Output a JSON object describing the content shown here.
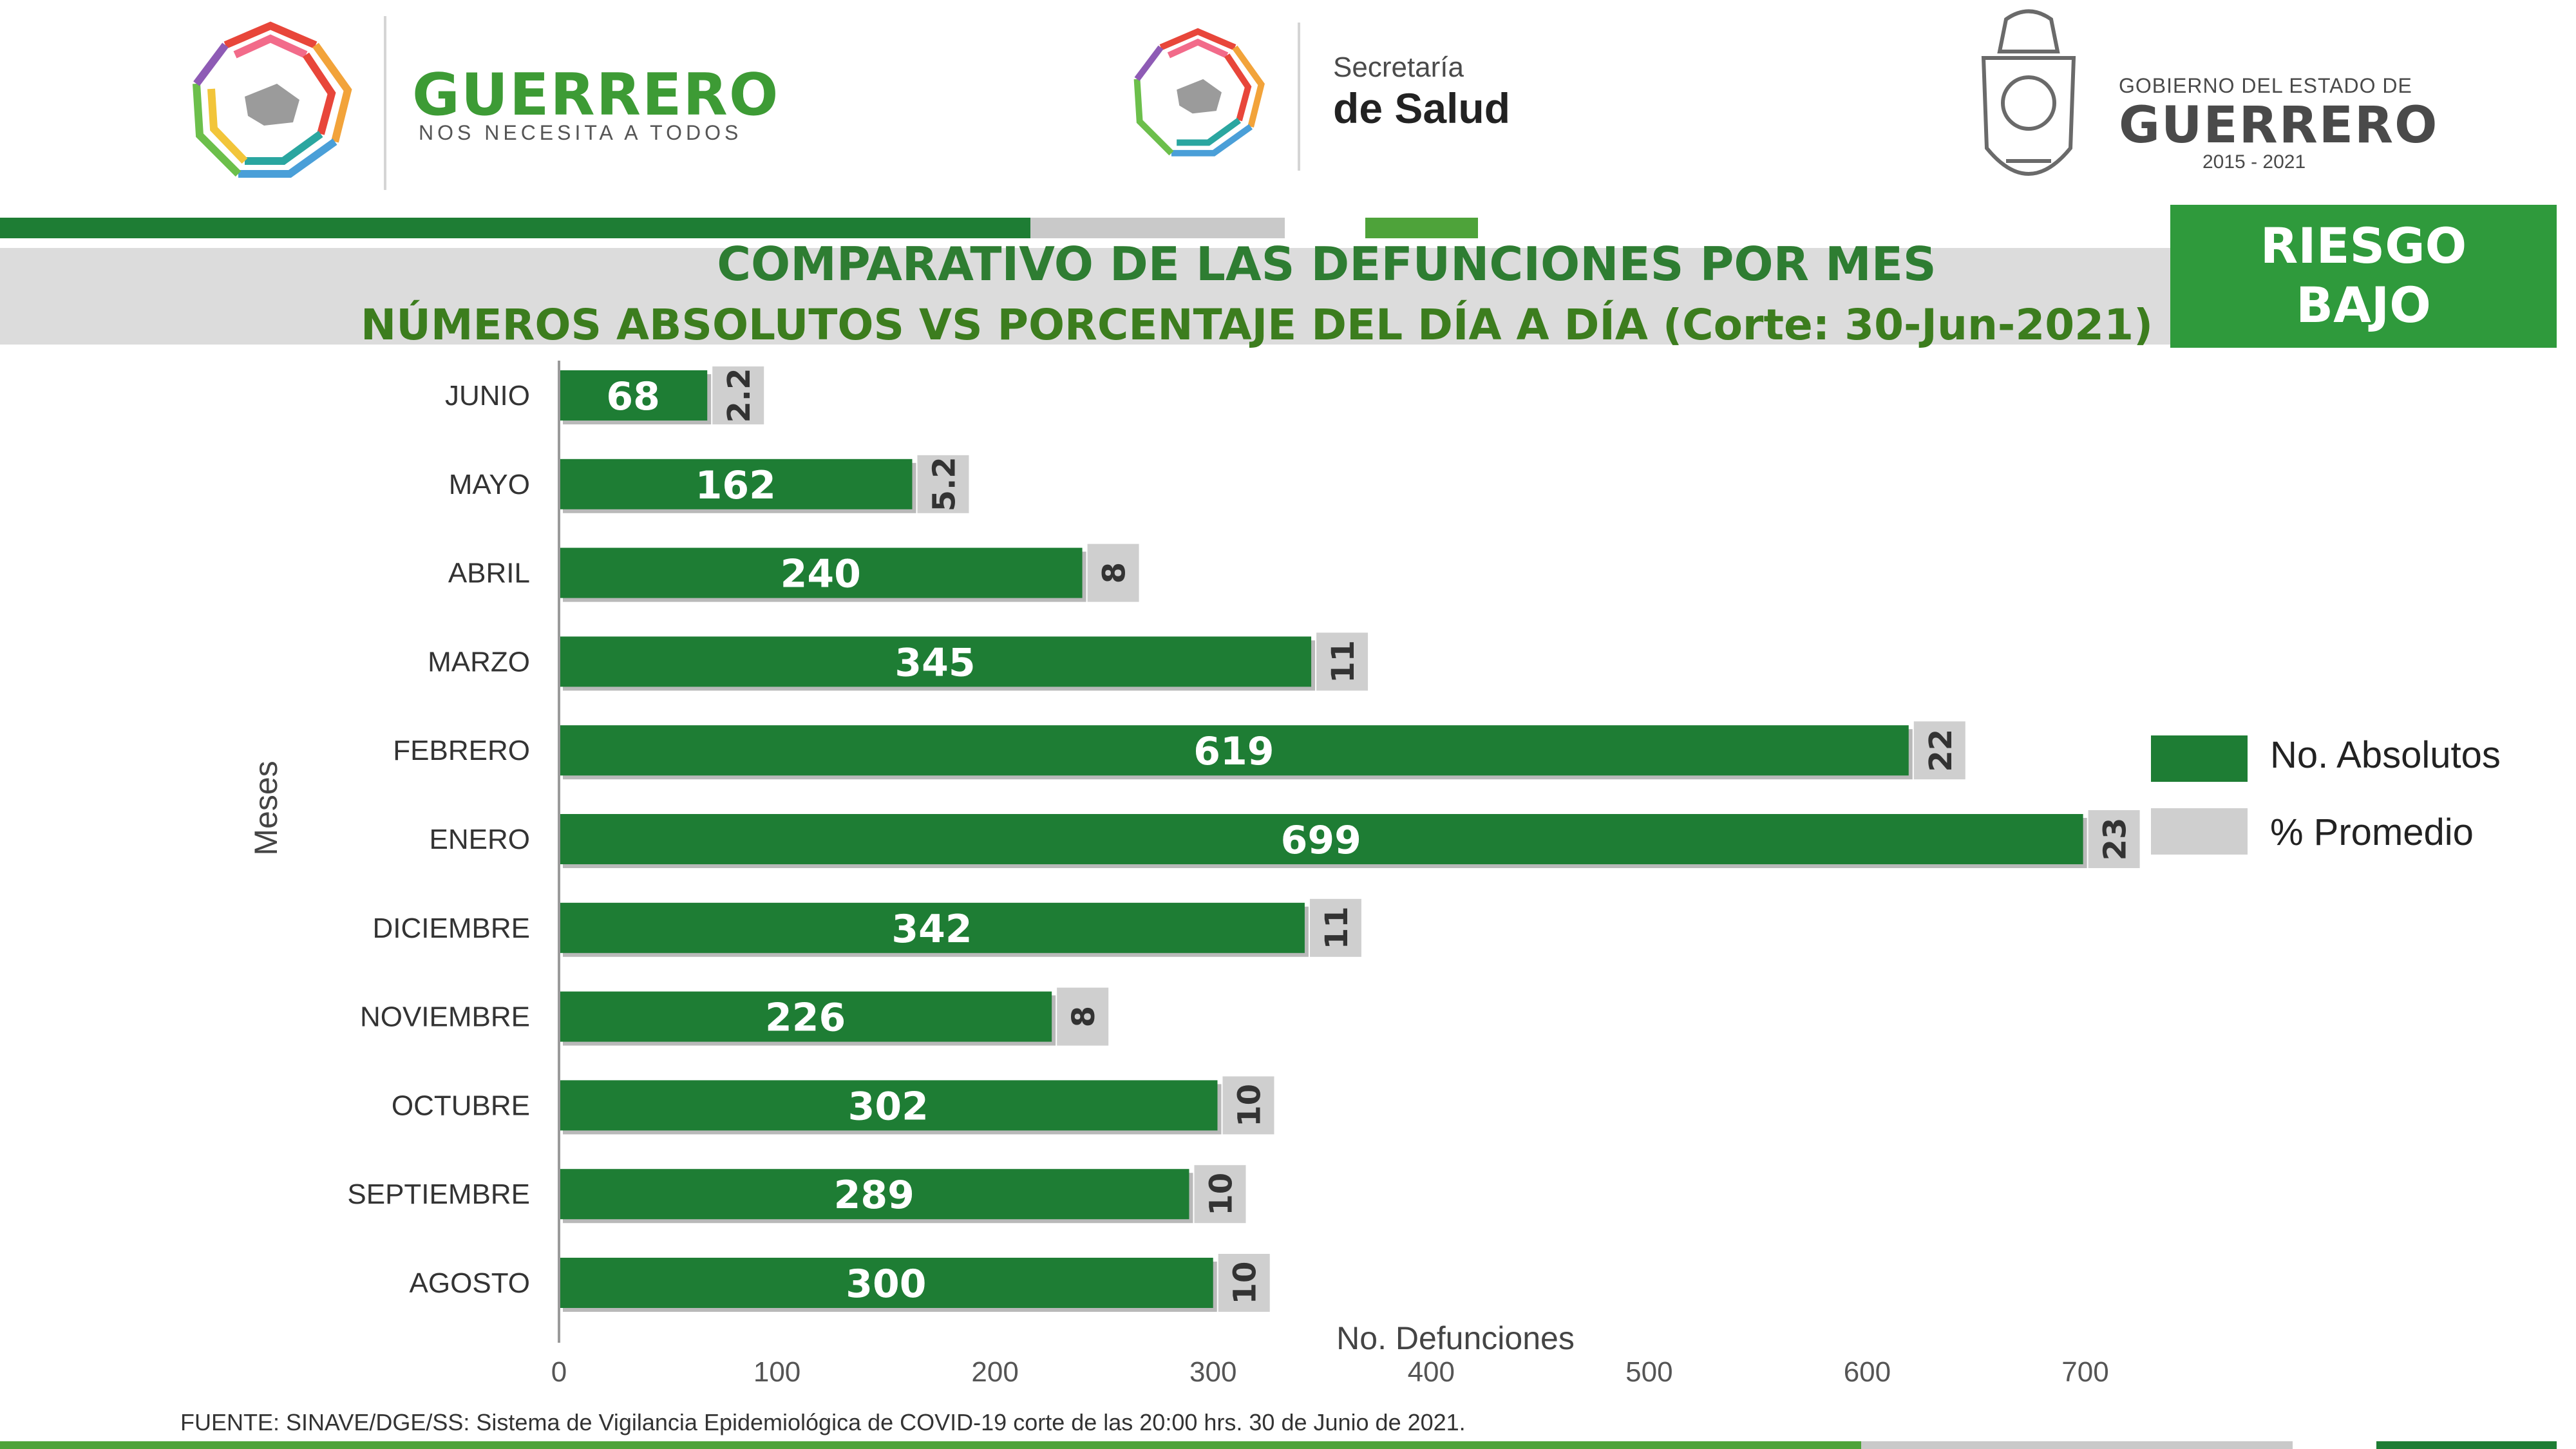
{
  "header": {
    "left_logo": {
      "word": "GUERRERO",
      "tagline": "NOS NECESITA A TODOS"
    },
    "center_logo": {
      "line1": "Secretaría",
      "line2": "de Salud"
    },
    "right_logo": {
      "line1": "GOBIERNO DEL ESTADO DE",
      "line2": "GUERRERO",
      "years": "2015 - 2021"
    }
  },
  "title": {
    "line1": "COMPARATIVO DE LAS DEFUNCIONES POR MES",
    "line2": "NÚMEROS ABSOLUTOS VS PORCENTAJE DEL DÍA A DÍA   (Corte: 30-Jun-2021)"
  },
  "risk_badge": {
    "line1": "RIESGO",
    "line2": "BAJO"
  },
  "colors": {
    "green": "#1e7d34",
    "grey": "#cfcfcf",
    "light_green": "#4ea33a",
    "dark_green": "#1e7d34"
  },
  "chart_data": {
    "type": "bar",
    "orientation": "horizontal",
    "categories": [
      "JUNIO",
      "MAYO",
      "ABRIL",
      "MARZO",
      "FEBRERO",
      "ENERO",
      "DICIEMBRE",
      "NOVIEMBRE",
      "OCTUBRE",
      "SEPTIEMBRE",
      "AGOSTO"
    ],
    "series": [
      {
        "name": "No. Absolutos",
        "values": [
          68,
          162,
          240,
          345,
          619,
          699,
          342,
          226,
          302,
          289,
          300
        ],
        "labels": [
          "68",
          "162",
          "240",
          "345",
          "619",
          "699",
          "342",
          "226",
          "302",
          "289",
          "300"
        ]
      },
      {
        "name": "% Promedio",
        "values": [
          2.2,
          5.2,
          8,
          11,
          22,
          23,
          11,
          8,
          10,
          10,
          10
        ],
        "labels": [
          "2.2",
          "5.2",
          "8",
          "11",
          "22",
          "23",
          "11",
          "8",
          "10",
          "10",
          "10"
        ]
      }
    ],
    "xlabel": "No. Defunciones",
    "ylabel": "Meses",
    "xlim": [
      0,
      700
    ],
    "xticks": [
      0,
      100,
      200,
      300,
      400,
      500,
      600,
      700
    ],
    "xtick_labels": [
      "0",
      "100",
      "200",
      "300",
      "400",
      "500",
      "600",
      "700"
    ],
    "legend_position": "right",
    "grid": false
  },
  "footnote": "FUENTE: SINAVE/DGE/SS: Sistema de Vigilancia Epidemiológica de COVID-19 corte de las 20:00 hrs. 30 de Junio de 2021."
}
